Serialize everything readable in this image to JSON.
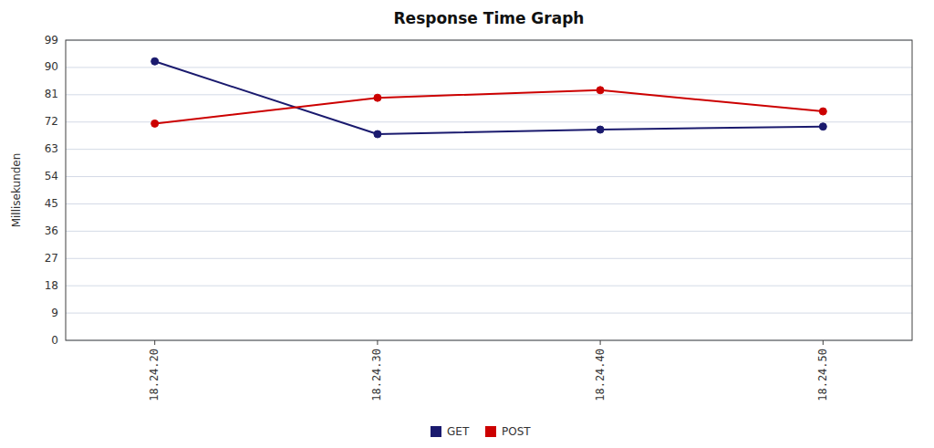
{
  "chart_data": {
    "type": "line",
    "title": "Response Time Graph",
    "y_label": "Millisekunden",
    "categories": [
      "18.24.20",
      "18.24.30",
      "18.24.40",
      "18.24.50"
    ],
    "series": [
      {
        "name": "GET",
        "color": "#1a1a6e",
        "marker": "circle",
        "values": [
          92.0,
          68.0,
          69.5,
          70.5
        ]
      },
      {
        "name": "POST",
        "color": "#cc0000",
        "marker": "circle",
        "values": [
          71.5,
          80.0,
          82.5,
          75.5
        ]
      }
    ],
    "ylim": [
      0,
      99
    ],
    "yticks": [
      0,
      9,
      18,
      27,
      36,
      45,
      54,
      63,
      72,
      81,
      90,
      99
    ],
    "grid": true,
    "legend": "bottom"
  }
}
